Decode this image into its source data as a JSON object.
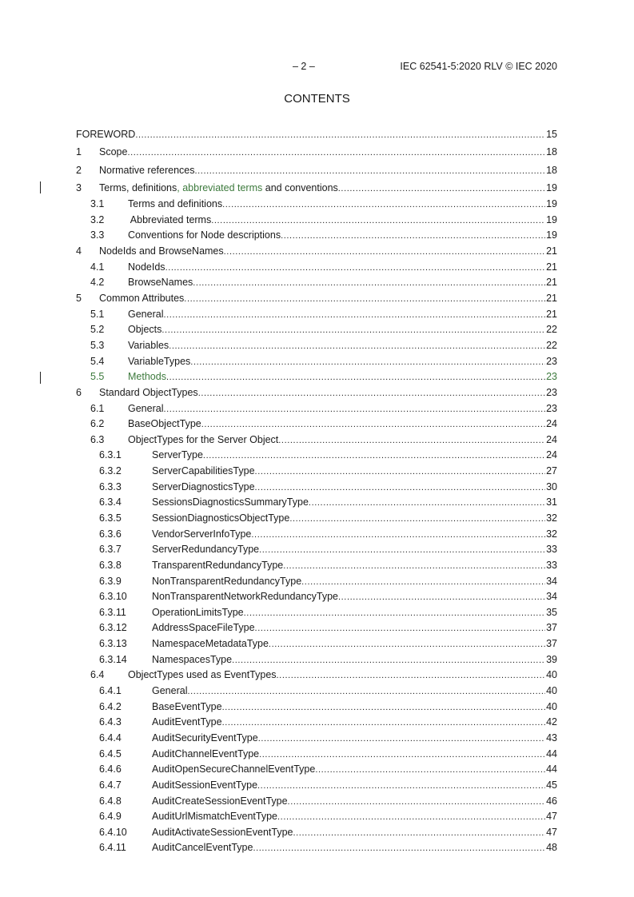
{
  "header": {
    "page": "– 2 –",
    "document": "IEC 62541-5:2020 RLV © IEC 2020"
  },
  "title": "CONTENTS",
  "colors": {
    "revision_green": "#3d7a3d"
  },
  "toc": [
    {
      "level": 0,
      "num": "",
      "title": "FOREWORD",
      "page": "15"
    },
    {
      "level": 1,
      "num": "1",
      "title": "Scope",
      "page": "18"
    },
    {
      "level": 1,
      "num": "2",
      "title": "Normative references",
      "page": "18"
    },
    {
      "level": 1,
      "num": "3",
      "title": "Terms, definitions",
      "title_insert": ", abbreviated terms",
      "title_after": " and conventions",
      "page": "19",
      "changed": true
    },
    {
      "level": 2,
      "num": "3.1",
      "title": "Terms and definitions",
      "page": "19"
    },
    {
      "level": 2,
      "num": "3.2",
      "title": " Abbreviated terms",
      "page": "19"
    },
    {
      "level": 2,
      "num": "3.3",
      "title": "Conventions for Node descriptions",
      "page": "19"
    },
    {
      "level": 1,
      "num": "4",
      "title": "NodeIds and BrowseNames",
      "page": "21"
    },
    {
      "level": 2,
      "num": "4.1",
      "title": "NodeIds",
      "page": "21"
    },
    {
      "level": 2,
      "num": "4.2",
      "title": "BrowseNames",
      "page": "21"
    },
    {
      "level": 1,
      "num": "5",
      "title": "Common Attributes",
      "page": "21"
    },
    {
      "level": 2,
      "num": "5.1",
      "title": "General",
      "page": "21"
    },
    {
      "level": 2,
      "num": "5.2",
      "title": "Objects",
      "page": "22"
    },
    {
      "level": 2,
      "num": "5.3",
      "title": "Variables",
      "page": "22"
    },
    {
      "level": 2,
      "num": "5.4",
      "title": "VariableTypes",
      "page": "23"
    },
    {
      "level": 2,
      "num": "5.5",
      "title": "Methods",
      "page": "23",
      "changed": true,
      "inserted": true
    },
    {
      "level": 1,
      "num": "6",
      "title": "Standard ObjectTypes",
      "page": "23"
    },
    {
      "level": 2,
      "num": "6.1",
      "title": "General",
      "page": "23"
    },
    {
      "level": 2,
      "num": "6.2",
      "title": "BaseObjectType",
      "page": "24"
    },
    {
      "level": 2,
      "num": "6.3",
      "title": "ObjectTypes for the Server Object",
      "page": "24"
    },
    {
      "level": 3,
      "num": "6.3.1",
      "title": "ServerType",
      "page": "24"
    },
    {
      "level": 3,
      "num": "6.3.2",
      "title": "ServerCapabilitiesType",
      "page": "27"
    },
    {
      "level": 3,
      "num": "6.3.3",
      "title": "ServerDiagnosticsType",
      "page": "30"
    },
    {
      "level": 3,
      "num": "6.3.4",
      "title": "SessionsDiagnosticsSummaryType",
      "page": "31"
    },
    {
      "level": 3,
      "num": "6.3.5",
      "title": "SessionDiagnosticsObjectType",
      "page": "32"
    },
    {
      "level": 3,
      "num": "6.3.6",
      "title": "VendorServerInfoType",
      "page": "32"
    },
    {
      "level": 3,
      "num": "6.3.7",
      "title": "ServerRedundancyType",
      "page": "33"
    },
    {
      "level": 3,
      "num": "6.3.8",
      "title": "TransparentRedundancyType",
      "page": "33"
    },
    {
      "level": 3,
      "num": "6.3.9",
      "title": "NonTransparentRedundancyType",
      "page": "34"
    },
    {
      "level": 3,
      "num": "6.3.10",
      "title": "NonTransparentNetworkRedundancyType",
      "page": "34"
    },
    {
      "level": 3,
      "num": "6.3.11",
      "title": "OperationLimitsType",
      "page": "35"
    },
    {
      "level": 3,
      "num": "6.3.12",
      "title": "AddressSpaceFileType",
      "page": "37"
    },
    {
      "level": 3,
      "num": "6.3.13",
      "title": "NamespaceMetadataType",
      "page": "37"
    },
    {
      "level": 3,
      "num": "6.3.14",
      "title": "NamespacesType",
      "page": "39"
    },
    {
      "level": 2,
      "num": "6.4",
      "title": "ObjectTypes used as EventTypes",
      "page": "40"
    },
    {
      "level": 3,
      "num": "6.4.1",
      "title": "General",
      "page": "40"
    },
    {
      "level": 3,
      "num": "6.4.2",
      "title": "BaseEventType",
      "page": "40"
    },
    {
      "level": 3,
      "num": "6.4.3",
      "title": "AuditEventType",
      "page": "42"
    },
    {
      "level": 3,
      "num": "6.4.4",
      "title": "AuditSecurityEventType",
      "page": "43"
    },
    {
      "level": 3,
      "num": "6.4.5",
      "title": "AuditChannelEventType",
      "page": "44"
    },
    {
      "level": 3,
      "num": "6.4.6",
      "title": "AuditOpenSecureChannelEventType",
      "page": "44"
    },
    {
      "level": 3,
      "num": "6.4.7",
      "title": "AuditSessionEventType",
      "page": "45"
    },
    {
      "level": 3,
      "num": "6.4.8",
      "title": "AuditCreateSessionEventType",
      "page": "46"
    },
    {
      "level": 3,
      "num": "6.4.9",
      "title": "AuditUrlMismatchEventType",
      "page": "47"
    },
    {
      "level": 3,
      "num": "6.4.10",
      "title": "AuditActivateSessionEventType",
      "page": "47"
    },
    {
      "level": 3,
      "num": "6.4.11",
      "title": "AuditCancelEventType",
      "page": "48"
    }
  ]
}
